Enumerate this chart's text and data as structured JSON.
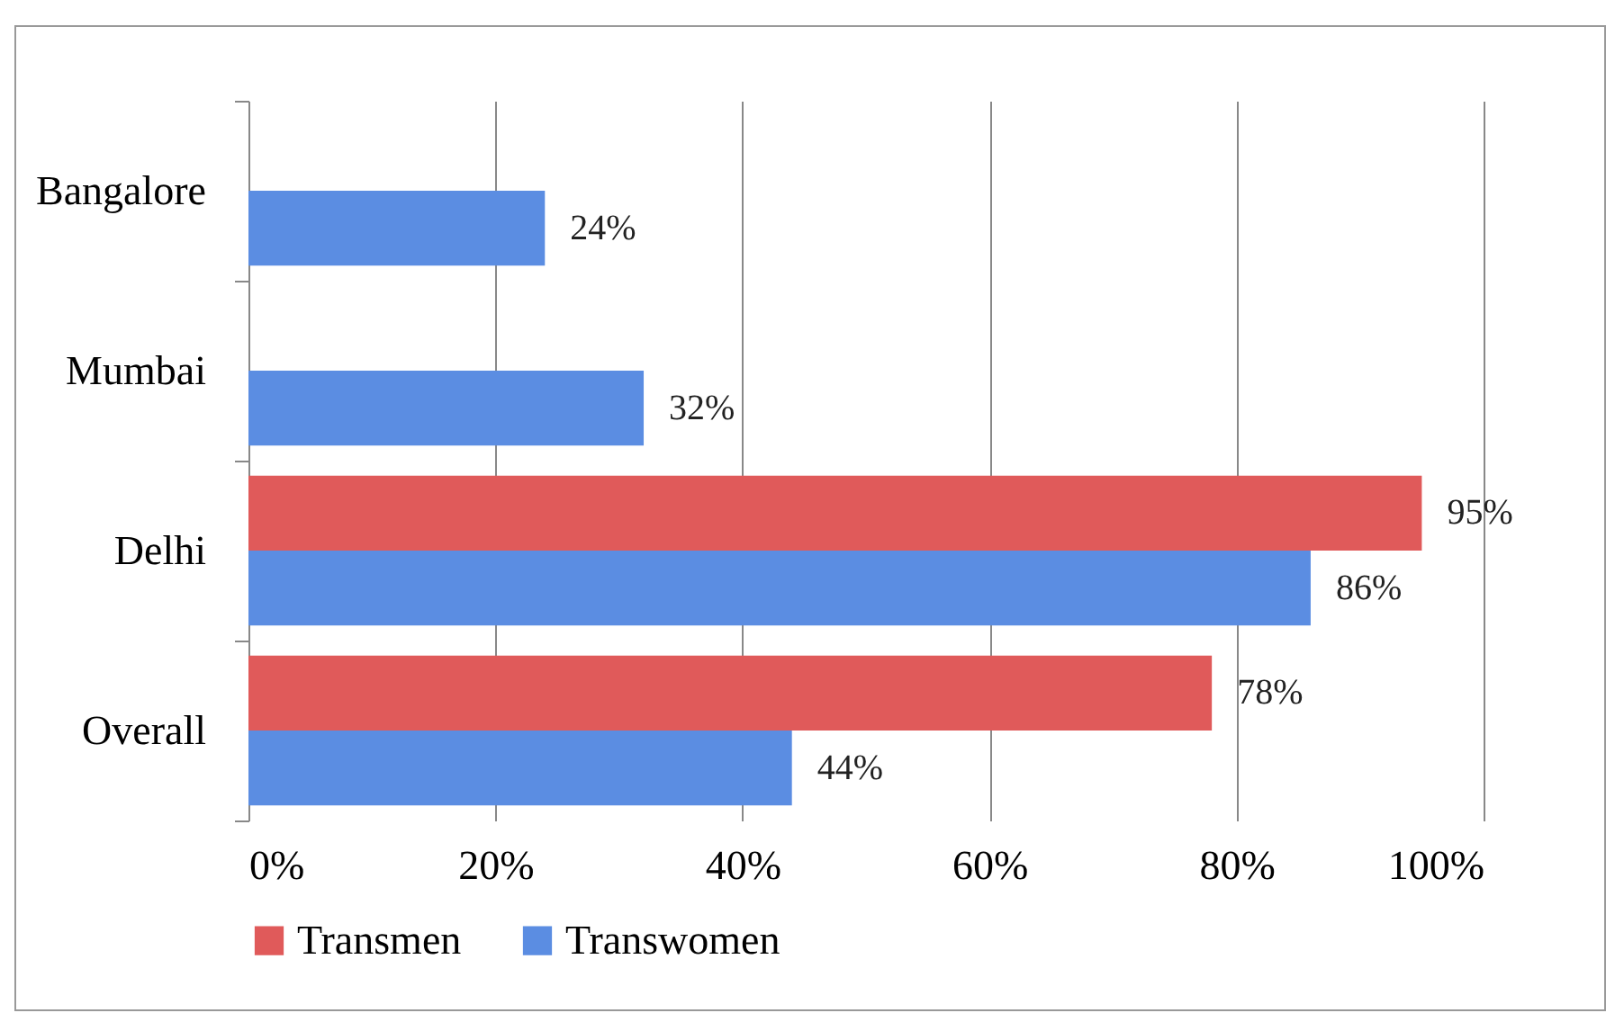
{
  "chart_data": {
    "type": "bar",
    "orientation": "horizontal",
    "categories": [
      "Bangalore",
      "Mumbai",
      "Delhi",
      "Overall"
    ],
    "series": [
      {
        "name": "Transmen",
        "color": "#e05a5a",
        "values": [
          null,
          null,
          95,
          78
        ],
        "value_labels": [
          null,
          null,
          "95%",
          "78%"
        ]
      },
      {
        "name": "Transwomen",
        "color": "#5b8de2",
        "values": [
          24,
          32,
          86,
          44
        ],
        "value_labels": [
          "24%",
          "32%",
          "86%",
          "44%"
        ]
      }
    ],
    "xlim": [
      0,
      100
    ],
    "xticks": [
      {
        "value": 0,
        "label": "0%"
      },
      {
        "value": 20,
        "label": "20%"
      },
      {
        "value": 40,
        "label": "40%"
      },
      {
        "value": 60,
        "label": "60%"
      },
      {
        "value": 80,
        "label": "80%"
      },
      {
        "value": 100,
        "label": "100%"
      }
    ],
    "grid": "x",
    "legend": "bottom"
  }
}
